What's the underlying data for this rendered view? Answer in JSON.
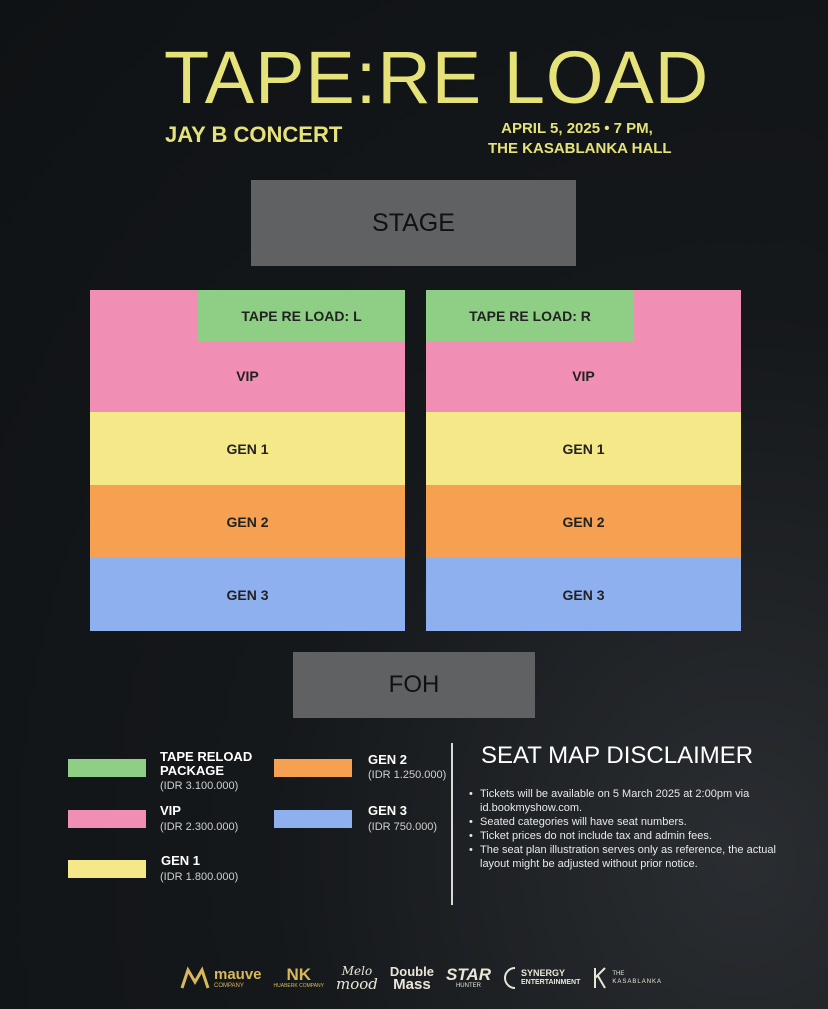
{
  "header": {
    "title": "TAPE:RE LOAD",
    "subtitle": "JAY B CONCERT",
    "date_line1": "APRIL 5, 2025 • 7 PM,",
    "date_line2": "THE KASABLANKA HALL"
  },
  "seatmap": {
    "stage_label": "STAGE",
    "foh_label": "FOH",
    "left_block": {
      "tape_label": "TAPE RE LOAD: L",
      "vip_label": "VIP",
      "gen1_label": "GEN 1",
      "gen2_label": "GEN 2",
      "gen3_label": "GEN 3"
    },
    "right_block": {
      "tape_label": "TAPE RE LOAD: R",
      "vip_label": "VIP",
      "gen1_label": "GEN 1",
      "gen2_label": "GEN 2",
      "gen3_label": "GEN 3"
    }
  },
  "colors": {
    "title_yellow": "#e6e27a",
    "tape_green": "#8fcf85",
    "vip_pink": "#f08fb3",
    "gen1_yellow": "#f5e889",
    "gen2_orange": "#f6a052",
    "gen3_blue": "#8fb0ef",
    "stage_gray": "#5f6163"
  },
  "legend": {
    "tape": {
      "name_line1": "TAPE RELOAD",
      "name_line2": "PACKAGE",
      "price": "(IDR 3.100.000)"
    },
    "vip": {
      "name": "VIP",
      "price": "(IDR 2.300.000)"
    },
    "gen1": {
      "name": "GEN 1",
      "price": "(IDR 1.800.000)"
    },
    "gen2": {
      "name": "GEN 2",
      "price": "(IDR 1.250.000)"
    },
    "gen3": {
      "name": "GEN 3",
      "price": "(IDR 750.000)"
    }
  },
  "disclaimer": {
    "title": "SEAT MAP DISCLAIMER",
    "items": [
      "Tickets will be available on 5 March 2025 at 2:00pm via id.bookmyshow.com.",
      "Seated categories will have seat numbers.",
      "Ticket prices do not include tax and admin fees.",
      "The seat plan illustration serves only as reference, the actual layout might be adjusted without prior notice."
    ]
  },
  "sponsors": {
    "mauve": "mauve",
    "mauve_sub": "COMPANY",
    "huaberk": "NK",
    "huaberk_sub": "HUABERK COMPANY",
    "melo_line1": "Melo",
    "melo_line2": "mood",
    "doublemass_line1": "Double",
    "doublemass_line2": "Mass",
    "starhunter": "STAR",
    "starhunter_sub": "HUNTER",
    "synergy_line1": "SYNERGY",
    "synergy_line2": "ENTERTAINMENT",
    "kasablanka_line1": "THE",
    "kasablanka_line2": "KASABLANKA"
  }
}
